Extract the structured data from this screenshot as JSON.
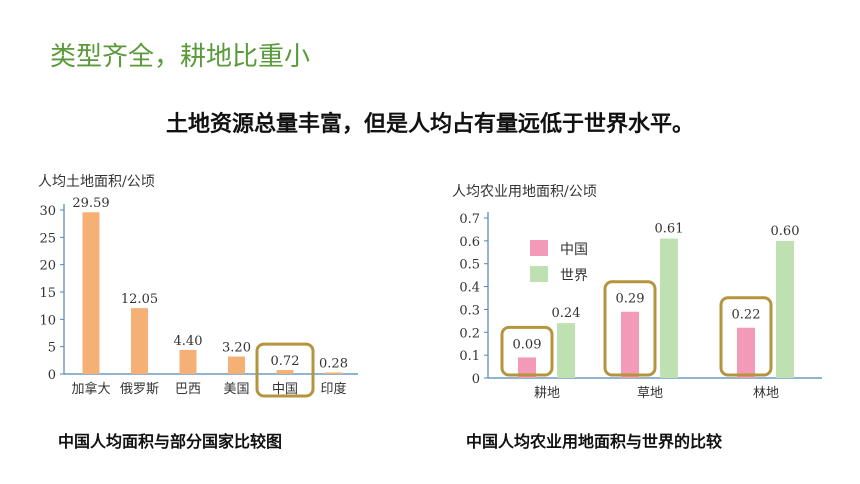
{
  "slide": {
    "title": "类型齐全，耕地比重小",
    "subtitle": "土地资源总量丰富，但是人均占有量远低于世界水平。",
    "caption_left": "中国人均面积与部分国家比较图",
    "caption_right": "中国人均农业用地面积与世界的比较"
  },
  "colors": {
    "title": "#5a9a3a",
    "bar_orange": "#f5b175",
    "bar_pink": "#f49ab9",
    "bar_green": "#bfe0b0",
    "highlight": "#b4943c"
  },
  "chart_data": [
    {
      "type": "bar",
      "ylabel": "人均土地面积/公顷",
      "categories": [
        "加拿大",
        "俄罗斯",
        "巴西",
        "美国",
        "中国",
        "印度"
      ],
      "values": [
        29.59,
        12.05,
        4.4,
        3.2,
        0.72,
        0.28
      ],
      "value_labels": [
        "29.59",
        "12.05",
        "4.40",
        "3.20",
        "0.72",
        "0.28"
      ],
      "ylim": [
        0,
        30
      ],
      "yticks": [
        "0",
        "5",
        "10",
        "15",
        "20",
        "25",
        "30"
      ],
      "highlighted": "中国",
      "grid": false
    },
    {
      "type": "bar",
      "ylabel": "人均农业用地面积/公顷",
      "categories": [
        "耕地",
        "草地",
        "林地"
      ],
      "series": [
        {
          "name": "中国",
          "values": [
            0.09,
            0.29,
            0.22
          ],
          "labels": [
            "0.09",
            "0.29",
            "0.22"
          ]
        },
        {
          "name": "世界",
          "values": [
            0.24,
            0.61,
            0.6
          ],
          "labels": [
            "0.24",
            "0.61",
            "0.60"
          ]
        }
      ],
      "ylim": [
        0,
        0.7
      ],
      "yticks": [
        "0",
        "0.1",
        "0.2",
        "0.3",
        "0.4",
        "0.5",
        "0.6",
        "0.7"
      ],
      "legend_position": "top-left",
      "highlighted_series": "中国",
      "grid": false
    }
  ]
}
